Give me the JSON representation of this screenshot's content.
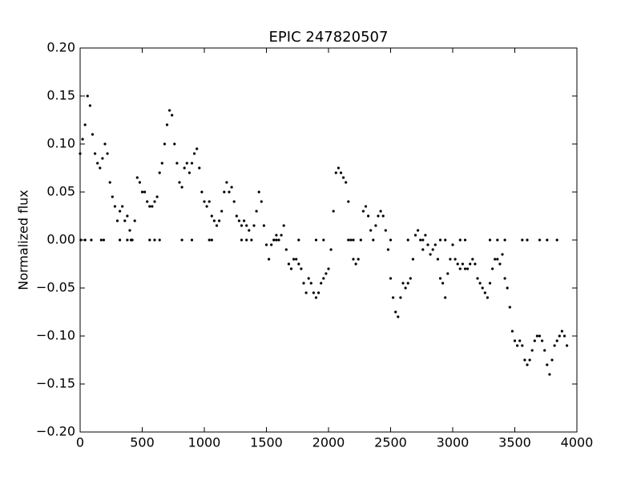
{
  "chart_data": {
    "type": "scatter",
    "title": "EPIC 247820507",
    "ylabel": "Normalized flux",
    "color": "#000000",
    "x": [
      0,
      20,
      40,
      60,
      80,
      100,
      120,
      140,
      160,
      180,
      200,
      220,
      240,
      260,
      280,
      300,
      320,
      340,
      360,
      380,
      400,
      420,
      440,
      460,
      480,
      500,
      520,
      540,
      560,
      580,
      600,
      620,
      640,
      660,
      680,
      700,
      720,
      740,
      760,
      780,
      800,
      820,
      840,
      860,
      880,
      900,
      920,
      940,
      960,
      980,
      1000,
      1020,
      1040,
      1060,
      1080,
      1100,
      1120,
      1140,
      1160,
      1180,
      1200,
      1220,
      1240,
      1260,
      1280,
      1300,
      1320,
      1340,
      1360,
      1380,
      1400,
      1420,
      1440,
      1460,
      1480,
      1500,
      1520,
      1540,
      1560,
      1580,
      1600,
      1620,
      1640,
      1660,
      1680,
      1700,
      1720,
      1740,
      1760,
      1780,
      1800,
      1820,
      1840,
      1860,
      1880,
      1900,
      1920,
      1940,
      1960,
      1980,
      2000,
      2020,
      2040,
      2060,
      2080,
      2100,
      2120,
      2140,
      2160,
      2180,
      2200,
      2220,
      2240,
      2260,
      2280,
      2300,
      2320,
      2340,
      2360,
      2380,
      2400,
      2420,
      2440,
      2460,
      2480,
      2500,
      2520,
      2540,
      2560,
      2580,
      2600,
      2620,
      2640,
      2660,
      2680,
      2700,
      2720,
      2740,
      2760,
      2780,
      2800,
      2820,
      2840,
      2860,
      2880,
      2900,
      2920,
      2940,
      2960,
      2980,
      3000,
      3020,
      3040,
      3060,
      3080,
      3100,
      3120,
      3140,
      3160,
      3180,
      3200,
      3220,
      3240,
      3260,
      3280,
      3300,
      3320,
      3340,
      3360,
      3380,
      3400,
      3420,
      3440,
      3460,
      3480,
      3500,
      3520,
      3540,
      3560,
      3580,
      3600,
      3620,
      3640,
      3660,
      3680,
      3700,
      3720,
      3740,
      3760,
      3780,
      3800,
      3820,
      3840,
      3860,
      3880,
      3900,
      3920,
      5,
      40,
      90,
      170,
      190,
      320,
      380,
      410,
      560,
      600,
      640,
      820,
      900,
      1040,
      1060,
      1300,
      1340,
      1560,
      1580,
      1760,
      1900,
      1960,
      2160,
      2200,
      2500,
      2640,
      2760,
      2900,
      2940,
      3060,
      3100,
      3300,
      3360,
      3420,
      3560,
      3600,
      3700,
      3760,
      3840
    ],
    "values": [
      0.09,
      0.105,
      0.12,
      0.15,
      0.14,
      0.11,
      0.09,
      0.08,
      0.075,
      0.085,
      0.1,
      0.09,
      0.06,
      0.045,
      0.035,
      0.02,
      0.03,
      0.035,
      0.02,
      0.025,
      0.01,
      0,
      0.02,
      0.065,
      0.06,
      0.05,
      0.05,
      0.04,
      0.035,
      0.035,
      0.04,
      0.045,
      0.07,
      0.08,
      0.1,
      0.12,
      0.135,
      0.13,
      0.1,
      0.08,
      0.06,
      0.055,
      0.075,
      0.08,
      0.07,
      0.08,
      0.09,
      0.095,
      0.075,
      0.05,
      0.04,
      0.035,
      0.04,
      0.025,
      0.02,
      0.015,
      0.02,
      0.03,
      0.05,
      0.06,
      0.05,
      0.055,
      0.04,
      0.025,
      0.02,
      0.015,
      0.02,
      0.015,
      0.01,
      0,
      0.015,
      0.03,
      0.05,
      0.04,
      0.015,
      -0.005,
      -0.02,
      -0.005,
      0,
      0.005,
      0,
      0.005,
      0.015,
      -0.01,
      -0.025,
      -0.03,
      -0.02,
      -0.02,
      -0.025,
      -0.03,
      -0.045,
      -0.055,
      -0.04,
      -0.045,
      -0.055,
      -0.06,
      -0.055,
      -0.045,
      -0.04,
      -0.035,
      -0.03,
      -0.01,
      0.03,
      0.07,
      0.075,
      0.07,
      0.065,
      0.06,
      0.04,
      0,
      -0.02,
      -0.025,
      -0.02,
      0,
      0.03,
      0.035,
      0.025,
      0.01,
      0,
      0.015,
      0.025,
      0.03,
      0.025,
      0.01,
      -0.01,
      -0.04,
      -0.06,
      -0.075,
      -0.08,
      -0.06,
      -0.045,
      -0.05,
      -0.045,
      -0.04,
      -0.02,
      0.005,
      0.01,
      0,
      -0.01,
      0.005,
      -0.005,
      -0.015,
      -0.01,
      -0.005,
      -0.02,
      -0.04,
      -0.045,
      -0.06,
      -0.035,
      -0.02,
      -0.005,
      -0.02,
      -0.025,
      -0.03,
      -0.025,
      -0.03,
      -0.03,
      -0.025,
      -0.02,
      -0.025,
      -0.04,
      -0.045,
      -0.05,
      -0.055,
      -0.06,
      -0.045,
      -0.03,
      -0.02,
      -0.02,
      -0.025,
      -0.015,
      -0.04,
      -0.05,
      -0.07,
      -0.095,
      -0.105,
      -0.11,
      -0.105,
      -0.11,
      -0.125,
      -0.13,
      -0.125,
      -0.115,
      -0.105,
      -0.1,
      -0.1,
      -0.105,
      -0.115,
      -0.13,
      -0.14,
      -0.125,
      -0.11,
      -0.105,
      -0.1,
      -0.095,
      -0.1,
      -0.11,
      0,
      0,
      0,
      0,
      0,
      0,
      0,
      0,
      0,
      0,
      0,
      0,
      0,
      0,
      0,
      0,
      0,
      0,
      0,
      0,
      0,
      0,
      0,
      0,
      0,
      0,
      0,
      0,
      0,
      0,
      0,
      0,
      0,
      0,
      0,
      0,
      0,
      0,
      0
    ],
    "xlim": [
      0,
      4000
    ],
    "ylim": [
      -0.2,
      0.2
    ],
    "xticks": [
      0,
      500,
      1000,
      1500,
      2000,
      2500,
      3000,
      3500,
      4000
    ],
    "yticks": [
      {
        "value": -0.2,
        "label": "−0.20"
      },
      {
        "value": -0.15,
        "label": "−0.15"
      },
      {
        "value": -0.1,
        "label": "−0.10"
      },
      {
        "value": -0.05,
        "label": "−0.05"
      },
      {
        "value": 0,
        "label": "0.00"
      },
      {
        "value": 0.05,
        "label": "0.05"
      },
      {
        "value": 0.1,
        "label": "0.10"
      },
      {
        "value": 0.15,
        "label": "0.15"
      },
      {
        "value": 0.2,
        "label": "0.20"
      }
    ]
  }
}
